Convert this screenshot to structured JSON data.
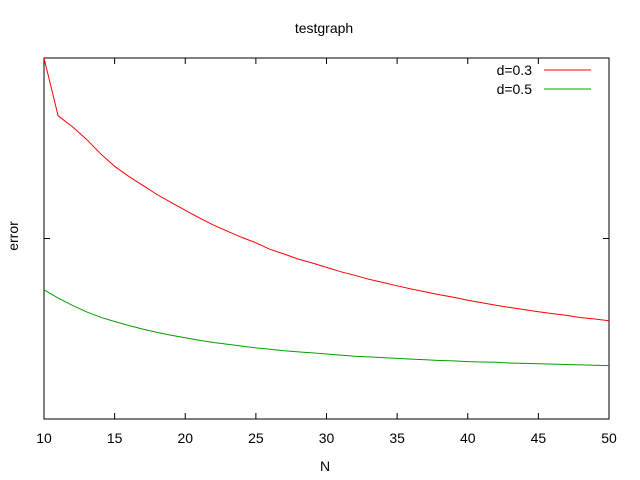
{
  "chart_data": {
    "type": "line",
    "title": "testgraph",
    "xlabel": "N",
    "ylabel": "error",
    "xlim": [
      10,
      50
    ],
    "ylim": [
      0,
      1
    ],
    "x_ticks": [
      "10",
      "15",
      "20",
      "25",
      "30",
      "35",
      "40",
      "45",
      "50"
    ],
    "y_tick_values": [
      0,
      0.5,
      1
    ],
    "y_tick_labels_shown": false,
    "grid": false,
    "legend_position": "top-right",
    "series": [
      {
        "name": "d=0.3",
        "color": "#ff0000",
        "x": [
          10,
          11,
          12,
          13,
          14,
          15,
          16,
          17,
          18,
          19,
          20,
          21,
          22,
          23,
          24,
          25,
          26,
          27,
          28,
          29,
          30,
          31,
          32,
          33,
          34,
          35,
          36,
          37,
          38,
          39,
          40,
          41,
          42,
          43,
          44,
          45,
          46,
          47,
          48,
          49,
          50
        ],
        "y": [
          1.0,
          0.84,
          0.81,
          0.775,
          0.735,
          0.7,
          0.672,
          0.647,
          0.622,
          0.6,
          0.578,
          0.557,
          0.537,
          0.52,
          0.503,
          0.488,
          0.47,
          0.457,
          0.443,
          0.432,
          0.42,
          0.408,
          0.398,
          0.387,
          0.378,
          0.369,
          0.36,
          0.352,
          0.344,
          0.337,
          0.329,
          0.322,
          0.315,
          0.309,
          0.303,
          0.297,
          0.292,
          0.287,
          0.281,
          0.277,
          0.272
        ]
      },
      {
        "name": "d=0.5",
        "color": "#00a000",
        "x": [
          10,
          11,
          12,
          13,
          14,
          15,
          16,
          17,
          18,
          19,
          20,
          21,
          22,
          23,
          24,
          25,
          26,
          27,
          28,
          29,
          30,
          31,
          32,
          33,
          34,
          35,
          36,
          37,
          38,
          39,
          40,
          41,
          42,
          43,
          44,
          45,
          46,
          47,
          48,
          49,
          50
        ],
        "y": [
          0.358,
          0.335,
          0.315,
          0.297,
          0.282,
          0.27,
          0.259,
          0.249,
          0.24,
          0.232,
          0.225,
          0.218,
          0.212,
          0.207,
          0.202,
          0.197,
          0.193,
          0.189,
          0.186,
          0.183,
          0.18,
          0.177,
          0.174,
          0.172,
          0.17,
          0.168,
          0.166,
          0.164,
          0.162,
          0.161,
          0.159,
          0.158,
          0.157,
          0.155,
          0.154,
          0.153,
          0.152,
          0.151,
          0.15,
          0.149,
          0.148
        ]
      }
    ]
  }
}
